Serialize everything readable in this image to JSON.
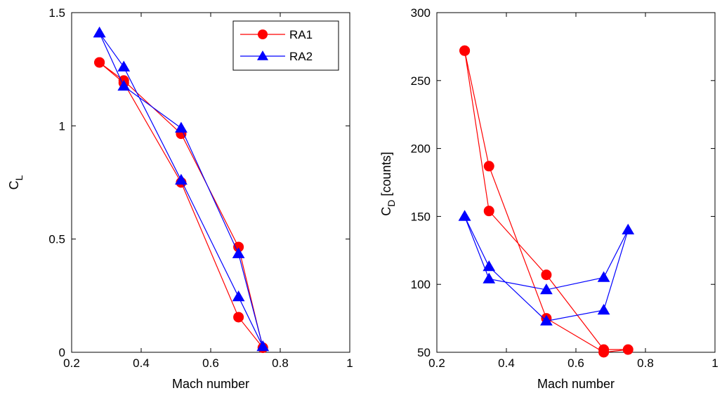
{
  "chart_data": [
    {
      "type": "line",
      "xlabel": "Mach number",
      "ylabel": "C",
      "ylabel_subscript": "L",
      "xlim": [
        0.2,
        1
      ],
      "ylim": [
        0,
        1.5
      ],
      "xticks": [
        0.2,
        0.4,
        0.6,
        0.8,
        1
      ],
      "yticks": [
        0,
        0.5,
        1,
        1.5
      ],
      "xtick_labels": [
        "0.2",
        "0.4",
        "0.6",
        "0.8",
        "1"
      ],
      "ytick_labels": [
        "0",
        "0.5",
        "1",
        "1.5"
      ],
      "grid": false,
      "legend": "top-right",
      "series": [
        {
          "name": "RA1",
          "color": "#ff0000",
          "marker": "circle",
          "points": [
            [
              0.28,
              1.28
            ],
            [
              0.35,
              1.2
            ],
            [
              0.515,
              0.965
            ],
            [
              0.68,
              0.465
            ],
            [
              0.75,
              0.02
            ],
            [
              0.68,
              0.155
            ],
            [
              0.515,
              0.75
            ],
            [
              0.35,
              1.19
            ],
            [
              0.28,
              1.28
            ]
          ]
        },
        {
          "name": "RA2",
          "color": "#0000ff",
          "marker": "triangle",
          "points": [
            [
              0.28,
              1.41
            ],
            [
              0.35,
              1.26
            ],
            [
              0.515,
              0.76
            ],
            [
              0.68,
              0.245
            ],
            [
              0.75,
              0.025
            ],
            [
              0.68,
              0.435
            ],
            [
              0.515,
              0.99
            ],
            [
              0.35,
              1.175
            ],
            [
              0.28,
              1.41
            ]
          ]
        }
      ]
    },
    {
      "type": "line",
      "xlabel": "Mach number",
      "ylabel": "C",
      "ylabel_subscript": "D",
      "ylabel_suffix": " [counts]",
      "xlim": [
        0.2,
        1
      ],
      "ylim": [
        50,
        300
      ],
      "xticks": [
        0.2,
        0.4,
        0.6,
        0.8,
        1
      ],
      "yticks": [
        50,
        100,
        150,
        200,
        250,
        300
      ],
      "xtick_labels": [
        "0.2",
        "0.4",
        "0.6",
        "0.8",
        "1"
      ],
      "ytick_labels": [
        "50",
        "100",
        "150",
        "200",
        "250",
        "300"
      ],
      "grid": false,
      "series": [
        {
          "name": "RA1",
          "color": "#ff0000",
          "marker": "circle",
          "points": [
            [
              0.28,
              272
            ],
            [
              0.35,
              154
            ],
            [
              0.515,
              107
            ],
            [
              0.68,
              52
            ],
            [
              0.75,
              52
            ],
            [
              0.68,
              50
            ],
            [
              0.515,
              75
            ],
            [
              0.35,
              187
            ],
            [
              0.28,
              272
            ]
          ]
        },
        {
          "name": "RA2",
          "color": "#0000ff",
          "marker": "triangle",
          "points": [
            [
              0.28,
              150
            ],
            [
              0.35,
              104
            ],
            [
              0.515,
              96
            ],
            [
              0.68,
              105
            ],
            [
              0.75,
              140
            ],
            [
              0.68,
              81
            ],
            [
              0.515,
              73
            ],
            [
              0.35,
              113
            ],
            [
              0.28,
              150
            ]
          ]
        }
      ]
    }
  ]
}
